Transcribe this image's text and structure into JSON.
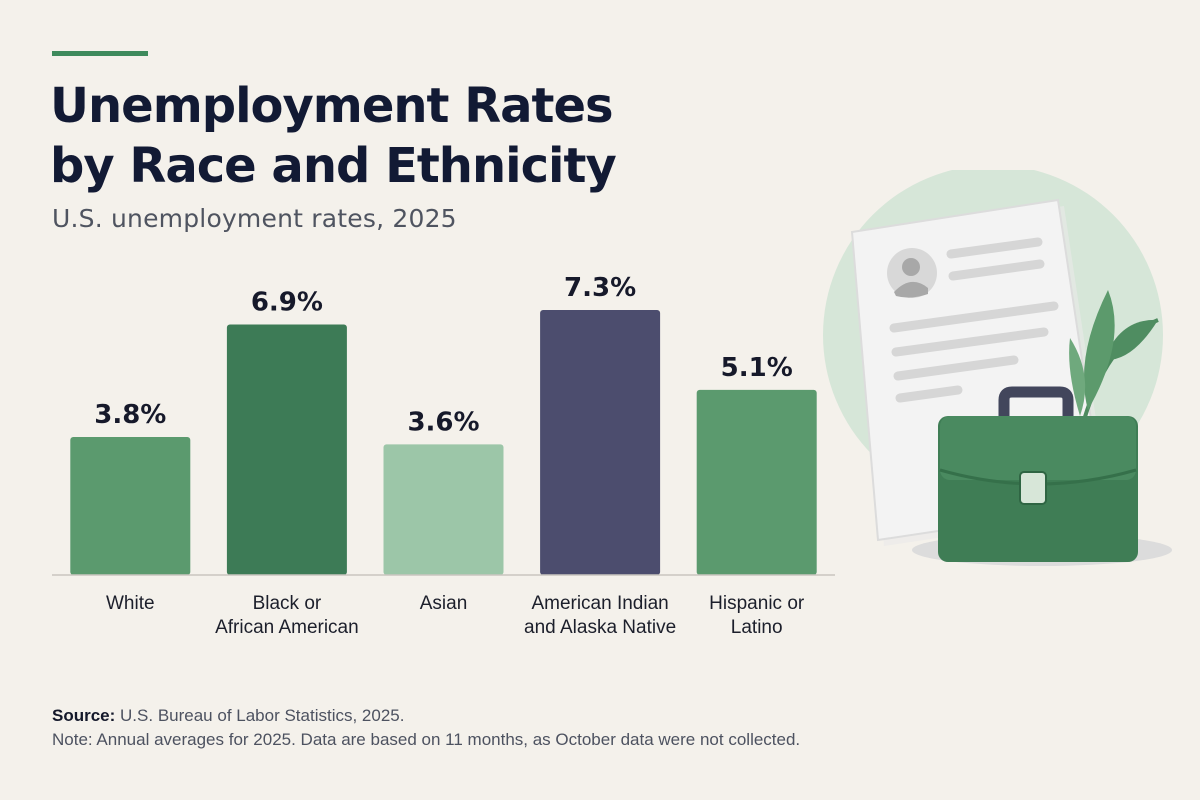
{
  "header": {
    "title_line1": "Unemployment Rates",
    "title_line2": "by Race and Ethnicity",
    "subtitle": "U.S. unemployment rates, 2025"
  },
  "chart_data": {
    "type": "bar",
    "title": "Unemployment Rates by Race and Ethnicity",
    "subtitle": "U.S. unemployment rates, 2025",
    "categories": [
      [
        "White"
      ],
      [
        "Black or",
        "African American"
      ],
      [
        "Asian"
      ],
      [
        "American Indian",
        "and Alaska Native"
      ],
      [
        "Hispanic or",
        "Latino"
      ]
    ],
    "values": [
      3.8,
      6.9,
      3.6,
      7.3,
      5.1
    ],
    "value_labels": [
      "3.8%",
      "6.9%",
      "3.6%",
      "7.3%",
      "5.1%"
    ],
    "colors": [
      "#5b9a6e",
      "#3d7b56",
      "#9cc6a8",
      "#4c4d6e",
      "#5b9a6e"
    ],
    "ylim": [
      0,
      8
    ],
    "xlabel": "",
    "ylabel": "",
    "grid": false,
    "legend": "none"
  },
  "footer": {
    "source_label": "Source:",
    "source_text": "U.S. Bureau of Labor Statistics, 2025.",
    "note": "Note: Annual averages for 2025. Data are based on 11 months, as October data were not collected."
  },
  "illustration": {
    "icons": [
      "resume-document-icon",
      "briefcase-icon",
      "leaf-plant-icon"
    ]
  }
}
